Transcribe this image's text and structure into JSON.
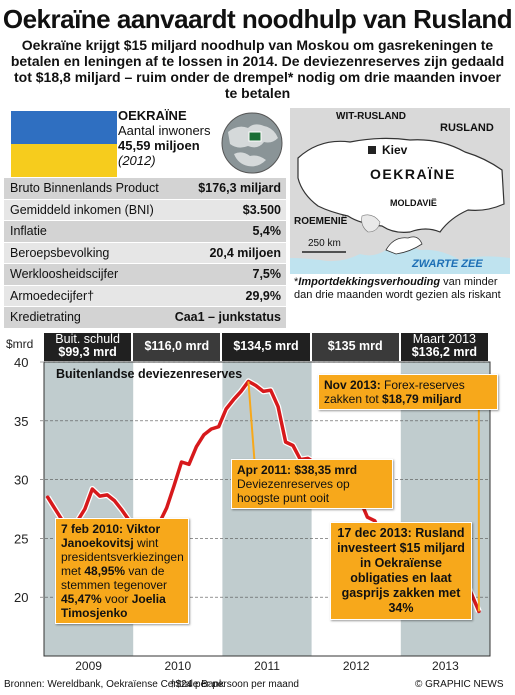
{
  "header": {
    "title": "Oekraïne aanvaardt noodhulp van Rusland",
    "subtitle": "Oekraïne krijgt $15 miljard noodhulp van Moskou om gasrekeningen te betalen en leningen af te lossen in 2014. De deviezenreserves zijn gedaald tot $18,8 miljard – ruim onder de drempel* nodig om drie maanden invoer te betalen"
  },
  "country": {
    "name": "OEKRAÏNE",
    "population_label": "Aantal inwoners",
    "population_value": "45,59 miljoen",
    "population_year": "(2012)",
    "flag_colors": [
      "#2f6fc1",
      "#f6cc1d"
    ]
  },
  "stats": [
    {
      "label": "Bruto Binnenlands Product",
      "value": "$176,3 miljard"
    },
    {
      "label": "Gemiddeld inkomen (BNI)",
      "value": "$3.500"
    },
    {
      "label": "Inflatie",
      "value": "5,4%"
    },
    {
      "label": "Beroepsbevolking",
      "value": "20,4 miljoen"
    },
    {
      "label": "Werkloosheidscijfer",
      "value": "7,5%"
    },
    {
      "label": "Armoedecijfer†",
      "value": "29,9%"
    },
    {
      "label": "Kredietrating",
      "value": "Caa1 – junkstatus"
    }
  ],
  "map": {
    "labels": {
      "wit_rusland": "WIT-RUSLAND",
      "rusland": "RUSLAND",
      "kiev": "Kiev",
      "oekraine": "OEKRAÏNE",
      "moldavie": "MOLDAVIË",
      "roemenie": "ROEMENIË",
      "zwarte_zee": "ZWARTE ZEE",
      "scale": "250 km"
    },
    "note_star": "*",
    "note_title": "Importdekkingsverhouding",
    "note_text": " van minder dan drie maanden wordt gezien als riskant"
  },
  "timeline": [
    {
      "line1": "Buit. schuld",
      "line2": "$99,3 mrd"
    },
    {
      "line1": "",
      "line2": "$116,0 mrd"
    },
    {
      "line1": "",
      "line2": "$134,5 mrd"
    },
    {
      "line1": "",
      "line2": "$135 mrd"
    },
    {
      "line1": "Maart 2013",
      "line2": "$136,2 mrd"
    }
  ],
  "chart_data": {
    "type": "line",
    "title": "Buitenlandse deviezenreserves",
    "ylabel": "$mrd",
    "ylim": [
      15,
      40
    ],
    "yticks": [
      20,
      25,
      30,
      35,
      40
    ],
    "x_labels": [
      "2009",
      "2010",
      "2011",
      "2012",
      "2013"
    ],
    "grid": true,
    "series": [
      {
        "values": [
          [
            "2009-01",
            28.5
          ],
          [
            "2009-02",
            27.5
          ],
          [
            "2009-03",
            26.5
          ],
          [
            "2009-04",
            25.7
          ],
          [
            "2009-05",
            26.5
          ],
          [
            "2009-06",
            27.5
          ],
          [
            "2009-07",
            29.2
          ],
          [
            "2009-08",
            28.6
          ],
          [
            "2009-09",
            28.7
          ],
          [
            "2009-10",
            28.2
          ],
          [
            "2009-11",
            27.4
          ],
          [
            "2009-12",
            26.5
          ],
          [
            "2010-01",
            25.5
          ],
          [
            "2010-02",
            24.5
          ],
          [
            "2010-03",
            25.4
          ],
          [
            "2010-04",
            26.3
          ],
          [
            "2010-05",
            27.6
          ],
          [
            "2010-06",
            29.5
          ],
          [
            "2010-07",
            31.5
          ],
          [
            "2010-08",
            31.3
          ],
          [
            "2010-09",
            32.8
          ],
          [
            "2010-10",
            33.8
          ],
          [
            "2010-11",
            34.3
          ],
          [
            "2010-12",
            34.5
          ],
          [
            "2011-01",
            36.0
          ],
          [
            "2011-02",
            36.8
          ],
          [
            "2011-03",
            37.5
          ],
          [
            "2011-04",
            38.35
          ],
          [
            "2011-05",
            38.0
          ],
          [
            "2011-06",
            37.5
          ],
          [
            "2011-07",
            37.6
          ],
          [
            "2011-08",
            36.2
          ],
          [
            "2011-09",
            33.2
          ],
          [
            "2011-10",
            32.9
          ],
          [
            "2011-11",
            31.7
          ],
          [
            "2011-12",
            31.8
          ],
          [
            "2012-01",
            31.4
          ],
          [
            "2012-02",
            31.1
          ],
          [
            "2012-03",
            30.8
          ],
          [
            "2012-04",
            30.2
          ],
          [
            "2012-05",
            29.6
          ],
          [
            "2012-06",
            28.2
          ],
          [
            "2012-07",
            28.3
          ],
          [
            "2012-08",
            26.8
          ],
          [
            "2012-09",
            26.5
          ],
          [
            "2012-10",
            25.0
          ],
          [
            "2012-11",
            24.6
          ],
          [
            "2012-12",
            24.5
          ],
          [
            "2013-01",
            24.6
          ],
          [
            "2013-02",
            24.3
          ],
          [
            "2013-03",
            25.0
          ],
          [
            "2013-04",
            25.0
          ],
          [
            "2013-05",
            24.4
          ],
          [
            "2013-06",
            23.3
          ],
          [
            "2013-07",
            22.6
          ],
          [
            "2013-08",
            22.0
          ],
          [
            "2013-09",
            21.7
          ],
          [
            "2013-10",
            20.3
          ],
          [
            "2013-11",
            18.79
          ]
        ]
      }
    ],
    "colors": {
      "line": "#d7191c",
      "shade": "#b9c7c9"
    }
  },
  "callouts": {
    "janukovitsj": {
      "date": "7 feb 2010: Viktor Janoekovitsj",
      "text1": "wint presidentsverkiezingen met ",
      "pct1": "48,95%",
      "text2": " van de stemmen tegenover ",
      "pct2": "45,47%",
      "text3": " voor ",
      "name": "Joelia Timosjenko"
    },
    "apr2011": {
      "date": "Apr 2011: $38,35 mrd",
      "text": "Deviezenreserves op hoogste punt ooit"
    },
    "nov2013": {
      "date": "Nov 2013:",
      "text": " Forex-reserves zakken tot ",
      "value": "$18,79 miljard"
    },
    "dec2013": {
      "text": "17 dec 2013: Rusland investeert $15 miljard in Oekraïense obligaties en laat gasprijs zakken met 34%"
    }
  },
  "footer": {
    "source": "Bronnen: Wereldbank, Oekraïense Centrale Bank",
    "footnote": "†$24 per persoon per maand",
    "credit": "© GRAPHIC NEWS"
  }
}
